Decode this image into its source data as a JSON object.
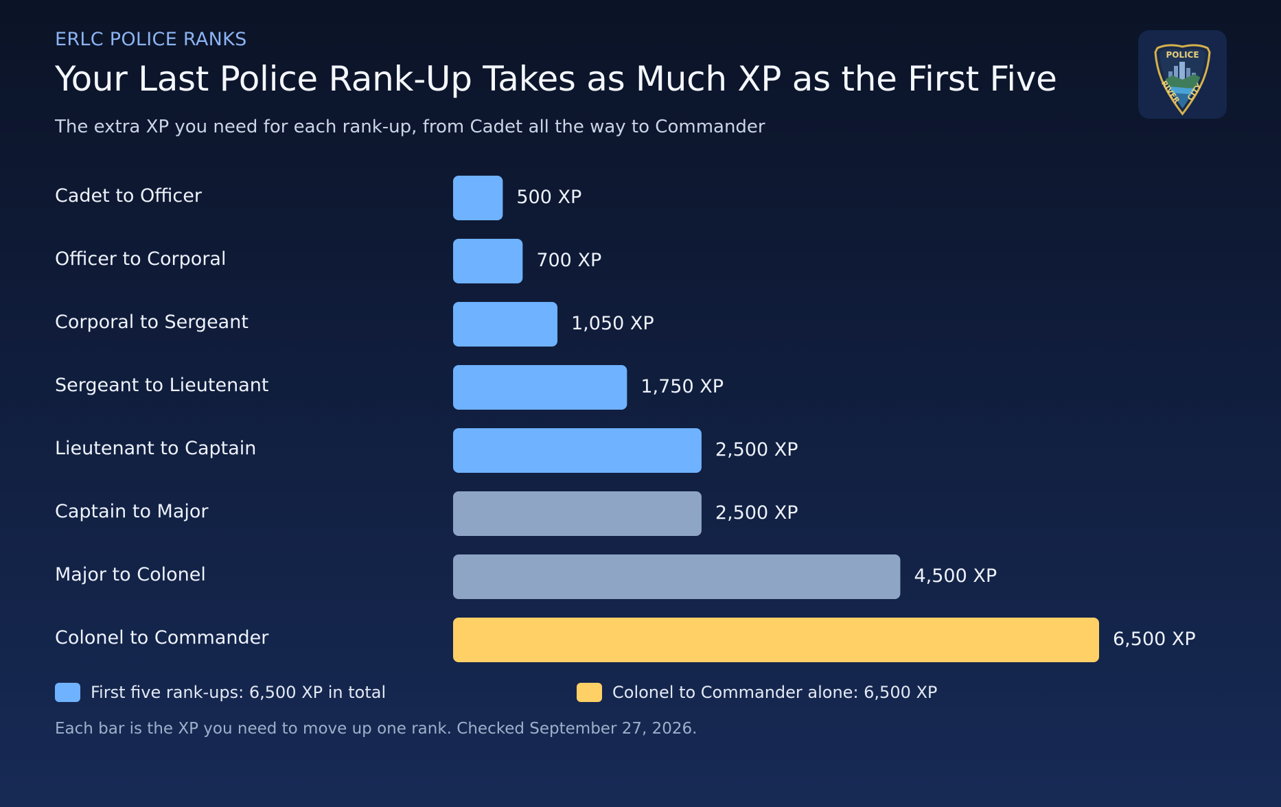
{
  "header": {
    "kicker": "ERLC POLICE RANKS",
    "title": "Your Last Police Rank-Up Takes as Much XP as the First Five",
    "subtitle": "The extra XP you need for each rank-up, from Cadet all the way to Commander"
  },
  "logo": {
    "top_text": "POLICE",
    "left_text": "RIVER",
    "right_text": "CITY"
  },
  "chart_data": {
    "type": "bar",
    "orientation": "horizontal",
    "categories": [
      "Cadet to Officer",
      "Officer to Corporal",
      "Corporal to Sergeant",
      "Sergeant to Lieutenant",
      "Lieutenant to Captain",
      "Captain to Major",
      "Major to Colonel",
      "Colonel to Commander"
    ],
    "values": [
      500,
      700,
      1050,
      1750,
      2500,
      2500,
      4500,
      6500
    ],
    "value_labels": [
      "500 XP",
      "700 XP",
      "1,050 XP",
      "1,750 XP",
      "2,500 XP",
      "2,500 XP",
      "4,500 XP",
      "6,500 XP"
    ],
    "bar_groups": [
      "first-five",
      "first-five",
      "first-five",
      "first-five",
      "first-five",
      "other",
      "other",
      "final"
    ],
    "colors": {
      "first-five": "#6fb2ff",
      "other": "#8fa5c6",
      "final": "#ffd066"
    },
    "xlim": [
      0,
      6500
    ],
    "grid": false,
    "legend_position": "bottom"
  },
  "legend": [
    {
      "label": "First five rank-ups: 6,500 XP in total",
      "color": "#6fb2ff"
    },
    {
      "label": "Colonel to Commander alone: 6,500 XP",
      "color": "#ffd066"
    }
  ],
  "footnote": "Each bar is the XP you need to move up one rank. Checked September 27, 2026."
}
